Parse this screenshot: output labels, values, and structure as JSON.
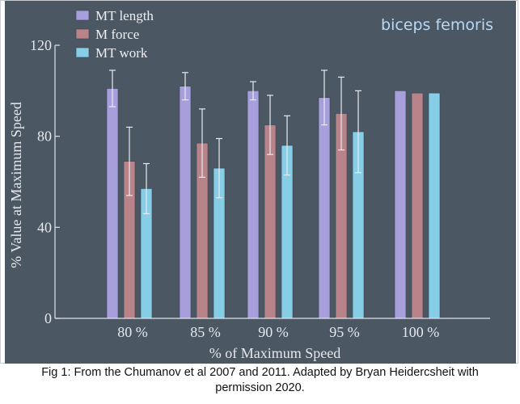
{
  "chart_data": {
    "type": "bar",
    "annotation": "biceps femoris",
    "xlabel": "% of Maximum Speed",
    "ylabel": "% Value at Maximum Speed",
    "categories": [
      "80 %",
      "85 %",
      "90 %",
      "95 %",
      "100 %"
    ],
    "ylim": [
      0,
      120
    ],
    "yticks": [
      0,
      40,
      80,
      120
    ],
    "grid": false,
    "legend_position": "top-left",
    "series": [
      {
        "name": "MT length",
        "color": "#a79fdc",
        "values": [
          101,
          102,
          100,
          97,
          100
        ],
        "errors": [
          8,
          6,
          4,
          12,
          0
        ]
      },
      {
        "name": "M force",
        "color": "#b98489",
        "values": [
          69,
          77,
          85,
          90,
          99
        ],
        "errors": [
          15,
          15,
          13,
          16,
          0
        ]
      },
      {
        "name": "MT work",
        "color": "#86cde6",
        "values": [
          57,
          66,
          76,
          82,
          99
        ],
        "errors": [
          11,
          13,
          13,
          18,
          0
        ]
      }
    ]
  },
  "caption": {
    "line1": "Fig 1: From the Chumanov et al 2007 and 2011. Adapted by Bryan Heidercsheit with",
    "line2": "permission 2020."
  }
}
